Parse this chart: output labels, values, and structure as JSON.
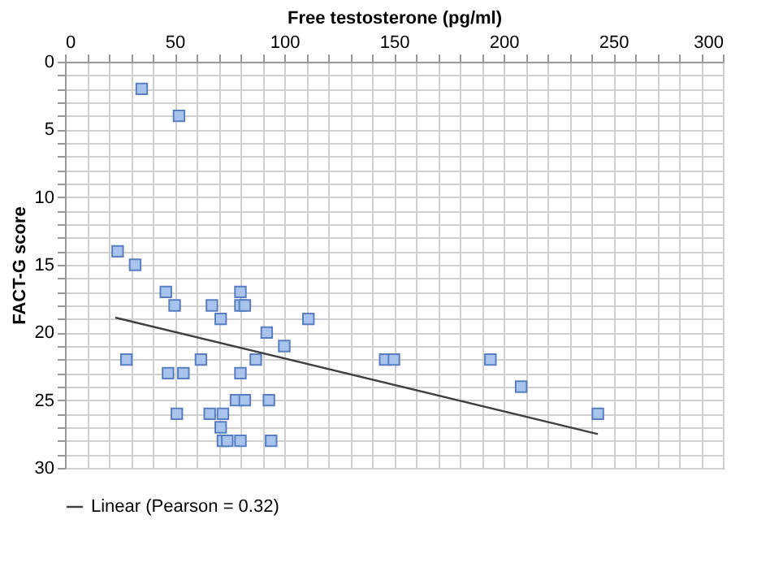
{
  "chart_data": {
    "type": "scatter",
    "xlabel": "Free testosterone (pg/ml)",
    "ylabel": "FACT-G score",
    "xlim": [
      0,
      300
    ],
    "ylim": [
      30,
      0
    ],
    "xticks": [
      0,
      {
        "value": 10,
        "label": null
      },
      {
        "value": 20,
        "label": null
      },
      {
        "value": 30,
        "label": null
      },
      {
        "value": 40,
        "label": null
      },
      50,
      {
        "value": 60,
        "label": null
      },
      {
        "value": 70,
        "label": null
      },
      {
        "value": 80,
        "label": null
      },
      {
        "value": 90,
        "label": null
      },
      100,
      {
        "value": 110,
        "label": null
      },
      {
        "value": 120,
        "label": null
      },
      {
        "value": 130,
        "label": null
      },
      {
        "value": 140,
        "label": null
      },
      150,
      {
        "value": 160,
        "label": null
      },
      {
        "value": 170,
        "label": null
      },
      {
        "value": 180,
        "label": null
      },
      {
        "value": 190,
        "label": null
      },
      200,
      {
        "value": 210,
        "label": null
      },
      {
        "value": 220,
        "label": null
      },
      {
        "value": 230,
        "label": null
      },
      {
        "value": 240,
        "label": null
      },
      250,
      {
        "value": 260,
        "label": null
      },
      {
        "value": 270,
        "label": null
      },
      {
        "value": 280,
        "label": null
      },
      {
        "value": 290,
        "label": null
      },
      300
    ],
    "yticks": [
      0,
      {
        "value": 1,
        "label": null
      },
      {
        "value": 2,
        "label": null
      },
      {
        "value": 3,
        "label": null
      },
      {
        "value": 4,
        "label": null
      },
      5,
      {
        "value": 6,
        "label": null
      },
      {
        "value": 7,
        "label": null
      },
      {
        "value": 8,
        "label": null
      },
      {
        "value": 9,
        "label": null
      },
      10,
      {
        "value": 11,
        "label": null
      },
      {
        "value": 12,
        "label": null
      },
      {
        "value": 13,
        "label": null
      },
      {
        "value": 14,
        "label": null
      },
      15,
      {
        "value": 16,
        "label": null
      },
      {
        "value": 17,
        "label": null
      },
      {
        "value": 18,
        "label": null
      },
      {
        "value": 19,
        "label": null
      },
      20,
      {
        "value": 21,
        "label": null
      },
      {
        "value": 22,
        "label": null
      },
      {
        "value": 23,
        "label": null
      },
      {
        "value": 24,
        "label": null
      },
      25,
      {
        "value": 26,
        "label": null
      },
      {
        "value": 27,
        "label": null
      },
      {
        "value": 28,
        "label": null
      },
      {
        "value": 29,
        "label": null
      },
      30
    ],
    "grid": true,
    "legend": "bottom",
    "series": [
      {
        "marker": "square",
        "color": "#a8c4ec",
        "x": [
          35,
          52,
          24,
          32,
          46,
          50,
          67,
          80,
          80,
          82,
          71,
          111,
          92,
          100,
          28,
          62,
          87,
          146,
          150,
          194,
          47,
          54,
          80,
          208,
          78,
          82,
          93,
          51,
          66,
          72,
          243,
          71,
          72,
          74,
          80,
          94
        ],
        "values": [
          2,
          4,
          14,
          15,
          17,
          18,
          18,
          17,
          18,
          18,
          19,
          19,
          20,
          21,
          22,
          22,
          22,
          22,
          22,
          22,
          23,
          23,
          23,
          24,
          25,
          25,
          25,
          26,
          26,
          26,
          26,
          27,
          28,
          28,
          28,
          28
        ]
      },
      {
        "type": "line",
        "name": "Linear (Pearson = 0.32)",
        "color": "#404040",
        "x": [
          23,
          243
        ],
        "values": [
          18.9,
          27.5
        ],
        "line_style": "solid"
      }
    ]
  }
}
